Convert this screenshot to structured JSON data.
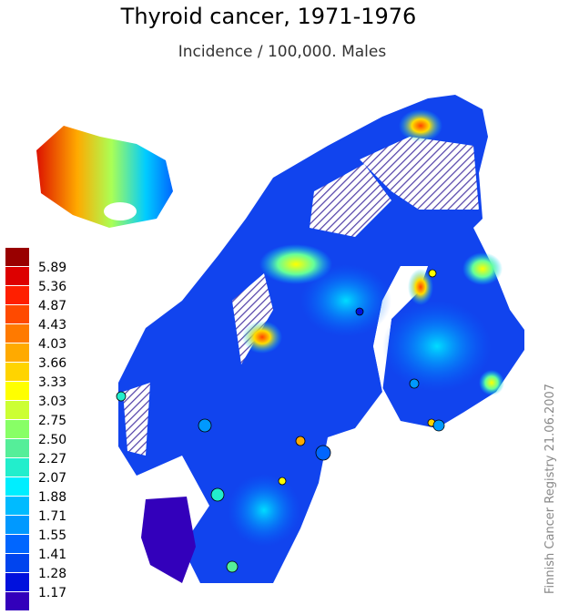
{
  "title": "Thyroid cancer, 1971-1976",
  "subtitle": "Incidence / 100,000. Males",
  "legend": {
    "colors": [
      "#990000",
      "#dd0000",
      "#ff1f00",
      "#ff4a00",
      "#ff7a00",
      "#ffaa00",
      "#ffd400",
      "#ffff00",
      "#ccff33",
      "#88ff66",
      "#55ee99",
      "#22eecc",
      "#00eeff",
      "#00bbff",
      "#0099ff",
      "#0066ff",
      "#0044ee",
      "#0011dd",
      "#3300bb"
    ],
    "labels": [
      "5.89",
      "5.36",
      "4.87",
      "4.43",
      "4.03",
      "3.66",
      "3.33",
      "3.03",
      "2.75",
      "2.50",
      "2.27",
      "2.07",
      "1.88",
      "1.71",
      "1.55",
      "1.41",
      "1.28",
      "1.17"
    ]
  },
  "credit": "Finnish Cancer Registry 21.06.2007"
}
